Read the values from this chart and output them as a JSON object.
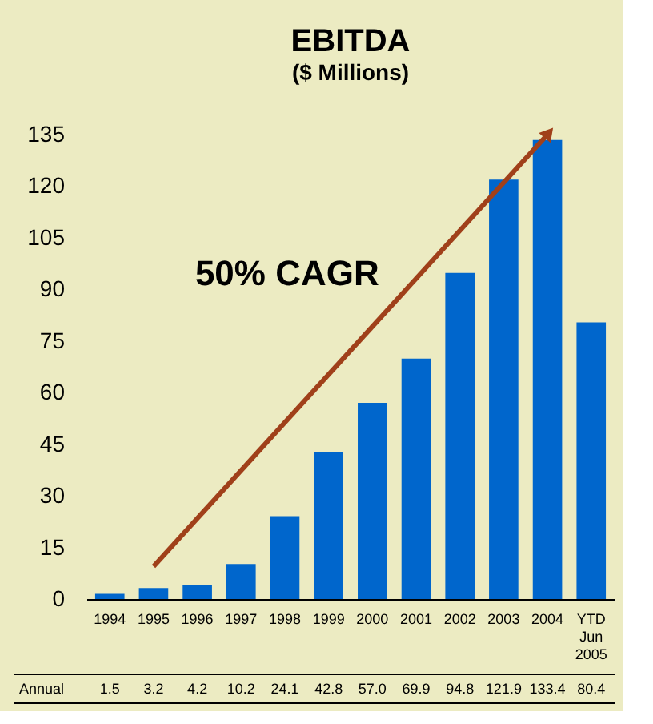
{
  "chart_data": {
    "type": "bar",
    "title": "EBITDA",
    "subtitle": "($ Millions)",
    "categories": [
      "1994",
      "1995",
      "1996",
      "1997",
      "1998",
      "1999",
      "2000",
      "2001",
      "2002",
      "2003",
      "2004",
      "YTD Jun 2005"
    ],
    "values": [
      1.5,
      3.2,
      4.2,
      10.2,
      24.1,
      42.8,
      57.0,
      69.9,
      94.8,
      121.9,
      133.4,
      80.4
    ],
    "value_labels": [
      "1.5",
      "3.2",
      "4.2",
      "10.2",
      "24.1",
      "42.8",
      "57.0",
      "69.9",
      "94.8",
      "121.9",
      "133.4",
      "80.4"
    ],
    "color": "#0066cc",
    "series": [
      {
        "type": "line",
        "values": [
          null,
          9.5,
          null,
          null,
          null,
          null,
          null,
          null,
          null,
          null,
          135,
          null
        ],
        "color": "#a0401a"
      }
    ],
    "ylim": [
      0,
      135
    ],
    "yticks": [
      0,
      15,
      30,
      45,
      60,
      75,
      90,
      105,
      120,
      135
    ],
    "grid": false,
    "annotations": [
      "50% CAGR",
      "Annual"
    ]
  }
}
